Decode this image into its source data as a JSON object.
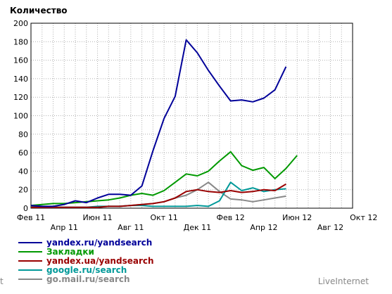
{
  "chart_data": {
    "type": "line",
    "ylabel": "Количество",
    "ylim": [
      0,
      200
    ],
    "yticks": [
      0,
      20,
      40,
      60,
      80,
      100,
      120,
      140,
      160,
      180,
      200
    ],
    "grid": true,
    "legend_position": "bottom-left",
    "x_tick_labels": [
      "Фев 11",
      "Апр 11",
      "Июн 11",
      "Авг 11",
      "Окт 11",
      "Дек 11",
      "Фев 12",
      "Апр 12",
      "Июн 12",
      "Авг 12",
      "Окт 12"
    ],
    "x": [
      "2011-01-30",
      "2011-02-20",
      "2011-03-13",
      "2011-04-03",
      "2011-04-24",
      "2011-05-15",
      "2011-06-05",
      "2011-06-26",
      "2011-07-17",
      "2011-08-07",
      "2011-08-28",
      "2011-09-18",
      "2011-10-09",
      "2011-10-30",
      "2011-11-20",
      "2011-12-11",
      "2012-01-01",
      "2012-01-22",
      "2012-02-12",
      "2012-03-04",
      "2012-03-25",
      "2012-04-15",
      "2012-05-06",
      "2012-05-27",
      "2012-06-17",
      "2012-07-08",
      "2012-07-29",
      "2012-08-19",
      "2012-09-09",
      "2012-09-30"
    ],
    "series": [
      {
        "name": "yandex.ru/yandsearch",
        "color": "#000099",
        "values": [
          3,
          2,
          2,
          4,
          8,
          6,
          11,
          15,
          15,
          14,
          24,
          62,
          97,
          121,
          182,
          168,
          149,
          132,
          116,
          117,
          115,
          119,
          128,
          153,
          null,
          null,
          null,
          null,
          null,
          null
        ]
      },
      {
        "name": "Закладки",
        "color": "#009900",
        "values": [
          3,
          4,
          5,
          5,
          6,
          7,
          8,
          9,
          11,
          14,
          16,
          14,
          19,
          28,
          37,
          35,
          40,
          51,
          61,
          46,
          41,
          44,
          32,
          43,
          57,
          null,
          null,
          null,
          null,
          null
        ]
      },
      {
        "name": "yandex.ua/yandsearch",
        "color": "#990000",
        "values": [
          1,
          1,
          1,
          1,
          1,
          1,
          1,
          2,
          2,
          3,
          4,
          5,
          7,
          11,
          18,
          20,
          18,
          17,
          19,
          17,
          18,
          20,
          19,
          26,
          null,
          null,
          null,
          null,
          null,
          null
        ]
      },
      {
        "name": "google.ru/search",
        "color": "#009999",
        "values": [
          2,
          2,
          1,
          1,
          1,
          1,
          2,
          2,
          2,
          3,
          3,
          2,
          2,
          2,
          2,
          3,
          2,
          8,
          28,
          19,
          22,
          18,
          20,
          21,
          null,
          null,
          null,
          null,
          null,
          null
        ]
      },
      {
        "name": "go.mail.ru/search",
        "color": "#888888",
        "values": [
          1,
          1,
          1,
          1,
          1,
          1,
          1,
          2,
          2,
          3,
          4,
          5,
          7,
          11,
          14,
          20,
          28,
          18,
          10,
          9,
          7,
          9,
          11,
          13,
          null,
          null,
          null,
          null,
          null,
          null
        ]
      }
    ]
  },
  "footer": {
    "brand": "LiveInternet",
    "left_fragment": "t"
  }
}
